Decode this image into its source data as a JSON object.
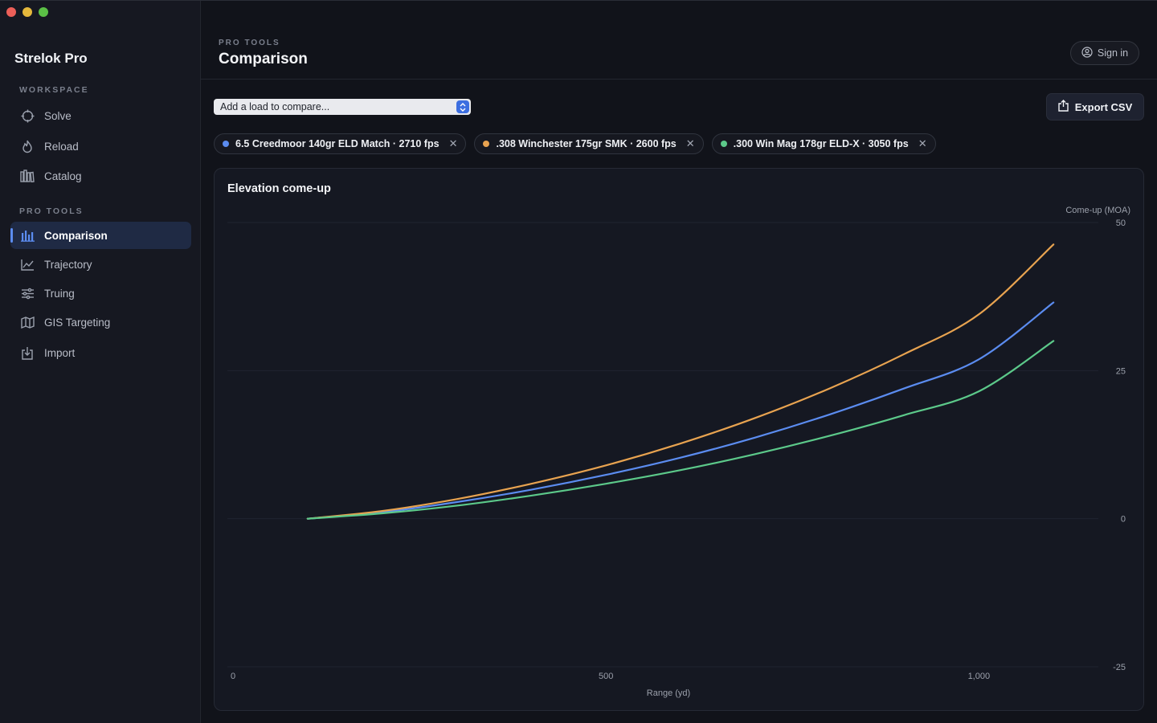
{
  "sidebar": {
    "app_title": "Strelok Pro",
    "workspace_label": "WORKSPACE",
    "protools_label": "PRO TOOLS",
    "workspace_items": [
      {
        "label": "Solve",
        "icon": "crosshair-icon"
      },
      {
        "label": "Reload",
        "icon": "flame-icon"
      },
      {
        "label": "Catalog",
        "icon": "library-icon"
      }
    ],
    "protools_items": [
      {
        "label": "Comparison",
        "icon": "bar-chart-icon",
        "active": true
      },
      {
        "label": "Trajectory",
        "icon": "line-chart-icon"
      },
      {
        "label": "Truing",
        "icon": "sliders-icon"
      },
      {
        "label": "GIS Targeting",
        "icon": "map-icon"
      },
      {
        "label": "Import",
        "icon": "import-icon"
      }
    ]
  },
  "header": {
    "eyebrow": "PRO TOOLS",
    "title": "Comparison",
    "sign_in": "Sign in"
  },
  "toolbar": {
    "select_value": "Add a load to compare...",
    "export_label": "Export CSV"
  },
  "loads": [
    {
      "label": "6.5 Creedmoor 140gr ELD Match · 2710 fps",
      "color": "#5b8cf0"
    },
    {
      "label": ".308 Winchester 175gr SMK · 2600 fps",
      "color": "#e8a350"
    },
    {
      "label": ".300 Win Mag 178gr ELD-X · 3050 fps",
      "color": "#5cc98a"
    }
  ],
  "chart_data": {
    "type": "line",
    "title": "Elevation come-up",
    "xlabel": "Range (yd)",
    "ylabel": "Come-up (MOA)",
    "xlim": [
      0,
      1200
    ],
    "ylim": [
      -25,
      50
    ],
    "x_ticks": [
      "0",
      "500",
      "1,000"
    ],
    "x_tick_values": [
      0,
      500,
      1000
    ],
    "y_ticks": [
      "50",
      "25",
      "0",
      "-25"
    ],
    "y_tick_values": [
      50,
      25,
      0,
      -25
    ],
    "grid": true,
    "series": [
      {
        "name": "6.5 Creedmoor 140gr ELD Match · 2710 fps",
        "color": "#5b8cf0",
        "x": [
          100,
          200,
          300,
          400,
          500,
          600,
          700,
          800,
          900,
          1000,
          1100
        ],
        "y": [
          0,
          1.1,
          2.8,
          4.9,
          7.4,
          10.3,
          13.7,
          17.6,
          22.0,
          26.9,
          36.5
        ]
      },
      {
        "name": ".308 Winchester 175gr SMK · 2600 fps",
        "color": "#e8a350",
        "x": [
          100,
          200,
          300,
          400,
          500,
          600,
          700,
          800,
          900,
          1000,
          1100
        ],
        "y": [
          0,
          1.3,
          3.3,
          5.9,
          9.0,
          12.7,
          17.0,
          22.0,
          27.8,
          34.5,
          46.3
        ]
      },
      {
        "name": ".300 Win Mag 178gr ELD-X · 3050 fps",
        "color": "#5cc98a",
        "x": [
          100,
          200,
          300,
          400,
          500,
          600,
          700,
          800,
          900,
          1000,
          1100
        ],
        "y": [
          0,
          0.9,
          2.2,
          3.9,
          5.9,
          8.2,
          10.9,
          14.0,
          17.5,
          21.5,
          30.0
        ]
      }
    ]
  }
}
